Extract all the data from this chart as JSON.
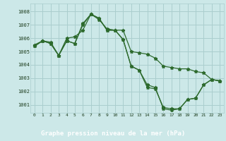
{
  "background_color": "#cce8e8",
  "grid_color": "#aacece",
  "line_color": "#2d6a2d",
  "marker_color": "#2d6a2d",
  "title": "Graphe pression niveau de la mer (hPa)",
  "title_bg": "#2d6a2d",
  "title_fg": "#ffffff",
  "ylim": [
    1000.4,
    1008.6
  ],
  "xlim": [
    -0.5,
    23.5
  ],
  "yticks": [
    1001,
    1002,
    1003,
    1004,
    1005,
    1006,
    1007,
    1008
  ],
  "xticks": [
    0,
    1,
    2,
    3,
    4,
    5,
    6,
    7,
    8,
    9,
    10,
    11,
    12,
    13,
    14,
    15,
    16,
    17,
    18,
    19,
    20,
    21,
    22,
    23
  ],
  "series": [
    [
      1005.5,
      1005.8,
      1005.7,
      1004.7,
      1006.0,
      1006.1,
      1006.6,
      1007.8,
      1007.4,
      1006.7,
      1006.6,
      1006.6,
      1005.0,
      1004.9,
      1004.8,
      1004.5,
      1003.9,
      1003.8,
      1003.7,
      1003.7,
      1003.5,
      1003.4,
      1002.9,
      1002.8
    ],
    [
      1005.4,
      1005.8,
      1005.6,
      1004.7,
      1005.8,
      1005.6,
      1007.1,
      1007.8,
      1007.5,
      1006.6,
      1006.6,
      1005.9,
      1003.9,
      1003.6,
      1002.5,
      1002.3,
      1000.7,
      1000.6,
      1000.7,
      1001.4,
      1001.5,
      1002.5,
      1002.9,
      1002.8
    ],
    [
      1005.4,
      1005.8,
      1005.6,
      1004.7,
      1005.8,
      1005.6,
      1007.0,
      1007.8,
      1007.5,
      1006.6,
      1006.6,
      1005.9,
      1003.9,
      1003.6,
      1002.3,
      1002.2,
      1000.8,
      1000.7,
      1000.7,
      1001.4,
      1001.5,
      1002.5,
      1002.9,
      1002.8
    ]
  ]
}
